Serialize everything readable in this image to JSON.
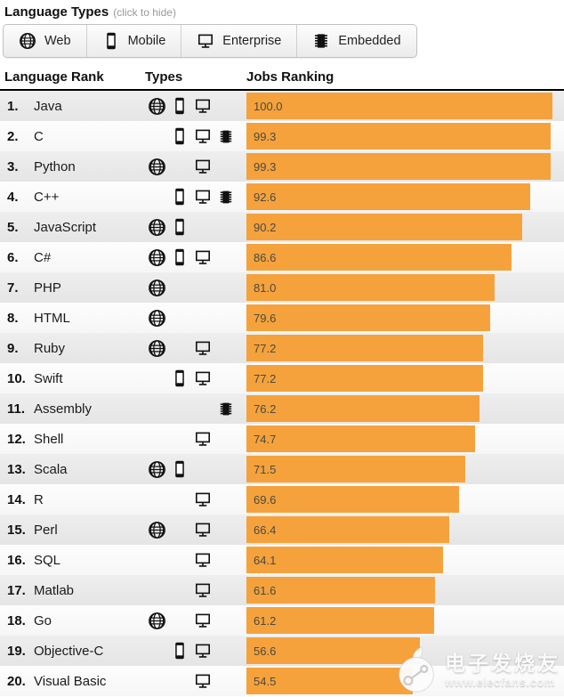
{
  "page": {
    "title": "Language Types",
    "subtitle": "(click to hide)"
  },
  "legend": {
    "buttons": [
      {
        "id": "web",
        "label": "Web",
        "icon": "globe-icon"
      },
      {
        "id": "mobile",
        "label": "Mobile",
        "icon": "smartphone-icon"
      },
      {
        "id": "enterprise",
        "label": "Enterprise",
        "icon": "monitor-icon"
      },
      {
        "id": "embedded",
        "label": "Embedded",
        "icon": "chip-icon"
      }
    ]
  },
  "table": {
    "columns": {
      "language_rank": "Language Rank",
      "types": "Types",
      "jobs_ranking": "Jobs Ranking"
    }
  },
  "chart_data": {
    "type": "bar",
    "title": "Jobs Ranking",
    "xlabel": "",
    "ylabel": "",
    "xlim": [
      0,
      100
    ],
    "grid": false,
    "legend_position": "top",
    "categories": [
      "Java",
      "C",
      "Python",
      "C++",
      "JavaScript",
      "C#",
      "PHP",
      "HTML",
      "Ruby",
      "Swift",
      "Assembly",
      "Shell",
      "Scala",
      "R",
      "Perl",
      "SQL",
      "Matlab",
      "Go",
      "Objective-C",
      "Visual Basic"
    ],
    "values": [
      100.0,
      99.3,
      99.3,
      92.6,
      90.2,
      86.6,
      81.0,
      79.6,
      77.2,
      77.2,
      76.2,
      74.7,
      71.5,
      69.6,
      66.4,
      64.1,
      61.6,
      61.2,
      56.6,
      54.5
    ],
    "rows": [
      {
        "rank": "1.",
        "language": "Java",
        "value": 100.0,
        "value_label": "100.0",
        "types": [
          "web",
          "mobile",
          "enterprise"
        ]
      },
      {
        "rank": "2.",
        "language": "C",
        "value": 99.3,
        "value_label": "99.3",
        "types": [
          "mobile",
          "enterprise",
          "embedded"
        ]
      },
      {
        "rank": "3.",
        "language": "Python",
        "value": 99.3,
        "value_label": "99.3",
        "types": [
          "web",
          "enterprise"
        ]
      },
      {
        "rank": "4.",
        "language": "C++",
        "value": 92.6,
        "value_label": "92.6",
        "types": [
          "mobile",
          "enterprise",
          "embedded"
        ]
      },
      {
        "rank": "5.",
        "language": "JavaScript",
        "value": 90.2,
        "value_label": "90.2",
        "types": [
          "web",
          "mobile"
        ]
      },
      {
        "rank": "6.",
        "language": "C#",
        "value": 86.6,
        "value_label": "86.6",
        "types": [
          "web",
          "mobile",
          "enterprise"
        ]
      },
      {
        "rank": "7.",
        "language": "PHP",
        "value": 81.0,
        "value_label": "81.0",
        "types": [
          "web"
        ]
      },
      {
        "rank": "8.",
        "language": "HTML",
        "value": 79.6,
        "value_label": "79.6",
        "types": [
          "web"
        ]
      },
      {
        "rank": "9.",
        "language": "Ruby",
        "value": 77.2,
        "value_label": "77.2",
        "types": [
          "web",
          "enterprise"
        ]
      },
      {
        "rank": "10.",
        "language": "Swift",
        "value": 77.2,
        "value_label": "77.2",
        "types": [
          "mobile",
          "enterprise"
        ]
      },
      {
        "rank": "11.",
        "language": "Assembly",
        "value": 76.2,
        "value_label": "76.2",
        "types": [
          "embedded"
        ]
      },
      {
        "rank": "12.",
        "language": "Shell",
        "value": 74.7,
        "value_label": "74.7",
        "types": [
          "enterprise"
        ]
      },
      {
        "rank": "13.",
        "language": "Scala",
        "value": 71.5,
        "value_label": "71.5",
        "types": [
          "web",
          "mobile"
        ]
      },
      {
        "rank": "14.",
        "language": "R",
        "value": 69.6,
        "value_label": "69.6",
        "types": [
          "enterprise"
        ]
      },
      {
        "rank": "15.",
        "language": "Perl",
        "value": 66.4,
        "value_label": "66.4",
        "types": [
          "web",
          "enterprise"
        ]
      },
      {
        "rank": "16.",
        "language": "SQL",
        "value": 64.1,
        "value_label": "64.1",
        "types": [
          "enterprise"
        ]
      },
      {
        "rank": "17.",
        "language": "Matlab",
        "value": 61.6,
        "value_label": "61.6",
        "types": [
          "enterprise"
        ]
      },
      {
        "rank": "18.",
        "language": "Go",
        "value": 61.2,
        "value_label": "61.2",
        "types": [
          "web",
          "enterprise"
        ]
      },
      {
        "rank": "19.",
        "language": "Objective-C",
        "value": 56.6,
        "value_label": "56.6",
        "types": [
          "mobile",
          "enterprise"
        ]
      },
      {
        "rank": "20.",
        "language": "Visual Basic",
        "value": 54.5,
        "value_label": "54.5",
        "types": [
          "enterprise"
        ]
      }
    ]
  },
  "colors": {
    "bar": "#F5A23C",
    "bar_value_text": "#4A4A42",
    "header_rule": "#000000",
    "row_odd": "#EAEAEA",
    "row_even": "#FBFBFB"
  },
  "watermark": {
    "line1": "电子发烧友",
    "line2": "www.elecfans.com"
  }
}
